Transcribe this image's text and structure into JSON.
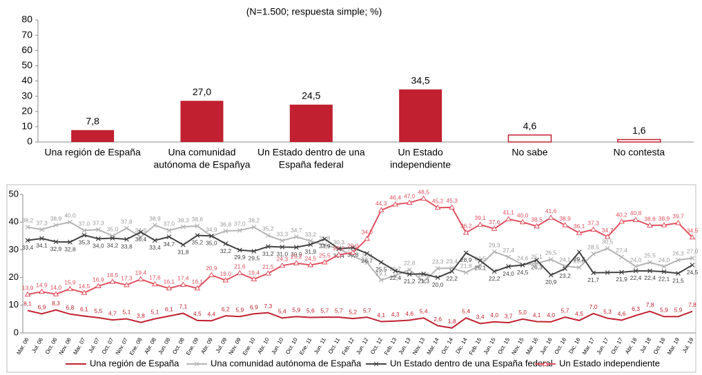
{
  "chart_data": [
    {
      "type": "bar",
      "title": "(N=1.500; respuesta simple; %)",
      "categories": [
        [
          "Una región de España"
        ],
        [
          "Una comunidad",
          "autónoma de Españya"
        ],
        [
          "Un Estado dentro de una",
          "España federal"
        ],
        [
          "Un Estado",
          "independiente"
        ],
        [
          "No sabe"
        ],
        [
          "No contesta"
        ]
      ],
      "values": [
        7.8,
        27.0,
        24.5,
        34.5,
        4.6,
        1.6
      ],
      "value_labels": [
        "7,8",
        "27,0",
        "24,5",
        "34,5",
        "4,6",
        "1,6"
      ],
      "color": "#c0202f",
      "outlined": [
        false,
        false,
        false,
        false,
        true,
        true
      ],
      "ylim": [
        0,
        80
      ],
      "yticks": [
        0,
        10,
        20,
        30,
        40,
        50,
        60,
        70,
        80
      ],
      "grid": false
    },
    {
      "type": "line",
      "categories": [
        "Mar. 06",
        "Jul. 06",
        "Oct. 06",
        "Nov. 06",
        "Mar. 07",
        "Jul. 07",
        "Oct. 07",
        "Nov. 07",
        "Ene. 08",
        "Abr. 08",
        "Jun. 08",
        "Oct. 08",
        "Ene. 09",
        "Abr. 09",
        "Jul. 09",
        "Nov. 09",
        "Ene. 10",
        "Abr. 10",
        "Jun. 10",
        "Oct. 10",
        "Ene. 11",
        "Jun. 11",
        "Oct. 11",
        "Feb. 12",
        "Jun. 12",
        "Oct. 12",
        "Feb. 13",
        "Jun. 13",
        "Nov. 13",
        "Mar. 14",
        "Oct. 14",
        "Dic. 14",
        "Feb. 15",
        "Jun. 15",
        "Oct. 15",
        "Nov. 15",
        "Mar. 16",
        "Jun. 16",
        "Oct. 16",
        "Dic. 16",
        "Mar. 17",
        "Jun. 17",
        "Oct. 17",
        "Abr. 18",
        "Jul. 18",
        "Oct. 18",
        "Mar. 19",
        "Jul. 19"
      ],
      "series": [
        {
          "name": "Una región de España",
          "color": "#c0202f",
          "marker": "none",
          "values": [
            8.1,
            6.9,
            8.3,
            6.8,
            6.1,
            5.5,
            4.7,
            5.1,
            3.8,
            5.1,
            6.1,
            7.1,
            4.5,
            4.4,
            6.2,
            5.9,
            6.9,
            7.3,
            5.4,
            5.9,
            5.6,
            5.7,
            5.7,
            5.2,
            5.7,
            4.1,
            4.3,
            4.6,
            5.4,
            2.6,
            1.8,
            5.4,
            3.4,
            4.0,
            3.7,
            5.0,
            4.1,
            4.0,
            5.7,
            4.5,
            7.0,
            5.3,
            4.6,
            6.3,
            7.8,
            5.9,
            5.9,
            7.8
          ],
          "value_labels": [
            "8,1",
            "6,9",
            "8,3",
            "6,8",
            "6,1",
            "5,5",
            "4,7",
            "5,1",
            "3,8",
            "5,1",
            "6,1",
            "7,1",
            "4,5",
            "4,4",
            "6,2",
            "5,9",
            "6,9",
            "7,3",
            "5,4",
            "5,9",
            "5,6",
            "5,7",
            "5,7",
            "5,2",
            "5,7",
            "4,1",
            "4,3",
            "4,6",
            "5,4",
            "2,6",
            "1,8",
            "5,4",
            "3,4",
            "4,0",
            "3,7",
            "5,0",
            "4,1",
            "4,0",
            "5,7",
            "4,5",
            "7,0",
            "5,3",
            "4,6",
            "6,3",
            "7,8",
            "5,9",
            "5,9",
            "7,8"
          ]
        },
        {
          "name": "Una comunidad autónoma de España",
          "color": "#b4b4b4",
          "marker": "x",
          "values": [
            38.2,
            37.3,
            38.9,
            40.0,
            37.0,
            37.3,
            35.0,
            37.8,
            34.6,
            38.9,
            37.0,
            38.3,
            38.6,
            34.9,
            36.8,
            37.0,
            38.2,
            35.2,
            33.3,
            34.7,
            33.2,
            31.8,
            30.3,
            27.8,
            25.4,
            19.1,
            20.7,
            22.8,
            18.6,
            23.3,
            23.4,
            21.8,
            24.5,
            29.3,
            27.4,
            24.6,
            25.1,
            26.5,
            24.1,
            23.6,
            28.5,
            30.5,
            27.4,
            24.0,
            25.5,
            24.0,
            26.3,
            27.0
          ],
          "value_labels": [
            "38,2",
            "37,3",
            "38,9",
            "40,0",
            "37,0",
            "37,3",
            "35,0",
            "37,8",
            "34,6",
            "38,9",
            "37,0",
            "38,3",
            "38,6",
            "34,9",
            "36,8",
            "37,0",
            "38,2",
            "35,2",
            "33,3",
            "34,7",
            "33,2",
            "31,8",
            "30,3",
            "27,8",
            "25,4",
            "19,1",
            "20,7",
            "22,8",
            "18,6",
            "23,3",
            "23,4",
            "21,8",
            "24,5",
            "29,3",
            "27,4",
            "24,6",
            "25,1",
            "26,5",
            "24,1",
            "23,6",
            "28,5",
            "30,5",
            "27,4",
            "24,0",
            "25,5",
            "24,0",
            "26,3",
            "27,0"
          ]
        },
        {
          "name": "Un Estado dentro de una España federal",
          "color": "#404040",
          "marker": "x",
          "values": [
            33.4,
            34.1,
            32.9,
            32.8,
            35.3,
            34.0,
            34.2,
            33.8,
            36.4,
            33.4,
            34.7,
            31.8,
            35.2,
            35.0,
            32.2,
            29.9,
            29.5,
            31.2,
            31.0,
            30.9,
            31.9,
            33.9,
            30.4,
            30.8,
            28.7,
            25.5,
            22.4,
            21.2,
            21.3,
            20.0,
            22.2,
            28.9,
            26.1,
            22.2,
            24.0,
            24.5,
            26.3,
            20.9,
            23.2,
            29.2,
            21.7,
            21.8,
            21.9,
            22.4,
            22.4,
            22.1,
            21.5,
            24.5
          ],
          "value_labels": [
            "33,4",
            "34,1",
            "32,9",
            "32,8",
            "35,3",
            "34,0",
            "34,2",
            "33,8",
            "36,4",
            "33,4",
            "34,7",
            "31,8",
            "35,2",
            "35,0",
            "32,2",
            "29,9",
            "29,5",
            "31,2",
            "31,0",
            "30,9",
            "31,9",
            "33,9",
            "30,4",
            "30,8",
            "28,7",
            "25,5",
            "22,4",
            "21,2",
            "21,3",
            "20,0",
            "22,2",
            "28,9",
            "26,1",
            "22,2",
            "24,0",
            "24,5",
            "26,3",
            "20,9",
            "23,2",
            "29,2",
            "21,7",
            null,
            "21,9",
            "22,4",
            "22,4",
            "22,1",
            "21,5",
            "24,5"
          ]
        },
        {
          "name": "Un Estado independiente",
          "color": "#e0505e",
          "marker": "triangle",
          "values": [
            13.9,
            14.9,
            14.0,
            15.9,
            14.5,
            16.9,
            18.5,
            17.3,
            19.4,
            17.6,
            16.1,
            17.4,
            16.1,
            20.9,
            19.0,
            21.6,
            19.4,
            21.5,
            24.3,
            25.2,
            24.5,
            25.5,
            28.2,
            29.0,
            34.0,
            44.3,
            46.4,
            47.0,
            48.5,
            45.2,
            45.3,
            36.2,
            39.1,
            37.6,
            41.1,
            40.0,
            38.5,
            41.6,
            38.9,
            36.1,
            37.3,
            34.7,
            40.2,
            40.8,
            38.8,
            38.9,
            39.7,
            34.5
          ],
          "value_labels": [
            "13,9",
            "14,9",
            "14,0",
            "15,9",
            "14,5",
            "16,9",
            "18,5",
            "17,3",
            "19,4",
            "17,6",
            "16,1",
            "17,4",
            "16,1",
            "20,9",
            "19,0",
            "21,6",
            "19,4",
            "21,5",
            "24,3",
            "25,2",
            "24,5",
            "25,5",
            "28,2",
            "29,0",
            "34,0",
            "44,3",
            "46,4",
            "47,0",
            "48,5",
            "45,2",
            "45,3",
            "36,2",
            "39,1",
            "37,6",
            "41,1",
            "40,0",
            "38,5",
            "41,6",
            "38,9",
            "36,1",
            "37,3",
            "34,7",
            "40,2",
            "40,8",
            "38,8",
            "38,9",
            "39,7",
            "34,5"
          ]
        }
      ],
      "ylim": [
        0,
        50
      ],
      "yticks": [
        0,
        10,
        20,
        30,
        40,
        50
      ],
      "grid": false,
      "legend": "bottom"
    }
  ]
}
